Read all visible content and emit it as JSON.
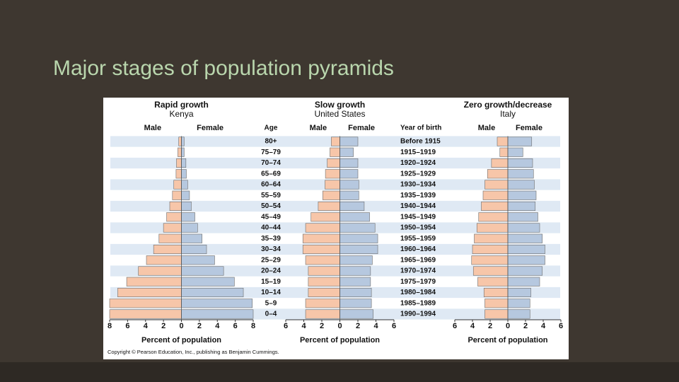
{
  "slide_title": "Major stages of population pyramids",
  "copyright": "Copyright © Pearson Education, Inc., publishing as Benjamin Cummings.",
  "chart_data": [
    {
      "type": "pyramid",
      "title": "Rapid growth",
      "subtitle": "Kenya",
      "x_label": "Percent of population",
      "xlim": [
        -8,
        8
      ],
      "xticks": [
        {
          "value": -8,
          "label": "8"
        },
        {
          "value": -6,
          "label": "6"
        },
        {
          "value": -4,
          "label": "4"
        },
        {
          "value": -2,
          "label": "2"
        },
        0,
        2,
        4,
        6,
        8
      ],
      "series": [
        {
          "name": "Male",
          "color": "#f7c6a9",
          "values": [
            -0.3,
            -0.4,
            -0.55,
            -0.6,
            -0.85,
            -1.0,
            -1.3,
            -1.65,
            -2.0,
            -2.5,
            -3.1,
            -3.9,
            -4.8,
            -6.1,
            -7.1,
            -8.0,
            -8.0
          ]
        },
        {
          "name": "Female",
          "color": "#b6c8df",
          "values": [
            0.3,
            0.3,
            0.5,
            0.55,
            0.7,
            0.9,
            1.1,
            1.5,
            1.8,
            2.3,
            2.8,
            3.7,
            4.7,
            5.9,
            6.9,
            7.9,
            8.0
          ]
        }
      ]
    },
    {
      "type": "pyramid",
      "title": "Slow growth",
      "subtitle": "United States",
      "x_label": "Percent of population",
      "category_label": "Age",
      "categories": [
        "80+",
        "75–79",
        "70–74",
        "65–69",
        "60–64",
        "55–59",
        "50–54",
        "45–49",
        "40–44",
        "35–39",
        "30–34",
        "25–29",
        "20–24",
        "15–19",
        "10–14",
        "5–9",
        "0–4"
      ],
      "xlim": [
        -6,
        6
      ],
      "xticks": [
        {
          "value": -6,
          "label": "6"
        },
        {
          "value": -4,
          "label": "4"
        },
        {
          "value": -2,
          "label": "2"
        },
        0,
        2,
        4,
        6
      ],
      "series": [
        {
          "name": "Male",
          "color": "#f7c6a9",
          "values": [
            -0.95,
            -1.1,
            -1.4,
            -1.6,
            -1.65,
            -1.9,
            -2.4,
            -3.2,
            -3.8,
            -4.1,
            -4.1,
            -3.8,
            -3.5,
            -3.5,
            -3.5,
            -3.8,
            -3.8
          ]
        },
        {
          "name": "Female",
          "color": "#b6c8df",
          "values": [
            2.0,
            1.5,
            2.0,
            2.0,
            2.1,
            2.1,
            2.7,
            3.3,
            3.9,
            4.2,
            4.2,
            3.6,
            3.4,
            3.4,
            3.5,
            3.5,
            3.7
          ]
        }
      ]
    },
    {
      "type": "pyramid",
      "title": "Zero growth/decrease",
      "subtitle": "Italy",
      "x_label": "Percent of population",
      "category_label": "Year of birth",
      "categories": [
        "Before 1915",
        "1915–1919",
        "1920–1924",
        "1925–1929",
        "1930–1934",
        "1935–1939",
        "1940–1944",
        "1945–1949",
        "1950–1954",
        "1955–1959",
        "1960–1964",
        "1965–1969",
        "1970–1974",
        "1975–1979",
        "1980–1984",
        "1985–1989",
        "1990–1994"
      ],
      "xlim": [
        -6,
        6
      ],
      "xticks": [
        {
          "value": -6,
          "label": "6"
        },
        {
          "value": -4,
          "label": "4"
        },
        {
          "value": -2,
          "label": "2"
        },
        0,
        2,
        4,
        6
      ],
      "series": [
        {
          "name": "Male",
          "color": "#f7c6a9",
          "values": [
            -1.2,
            -0.9,
            -1.85,
            -2.3,
            -2.6,
            -2.8,
            -3.0,
            -3.3,
            -3.5,
            -3.8,
            -4.0,
            -4.1,
            -3.9,
            -3.4,
            -2.7,
            -2.6,
            -2.6
          ]
        },
        {
          "name": "Female",
          "color": "#b6c8df",
          "values": [
            2.7,
            1.7,
            2.8,
            2.9,
            3.0,
            3.2,
            3.1,
            3.4,
            3.6,
            3.9,
            4.2,
            4.2,
            3.9,
            3.6,
            2.6,
            2.5,
            2.5
          ]
        }
      ]
    }
  ]
}
